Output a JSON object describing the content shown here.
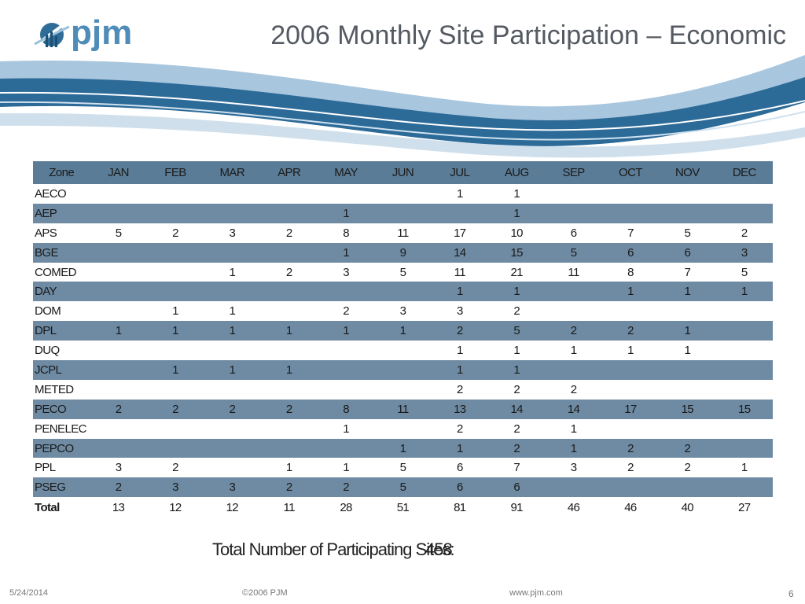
{
  "logo": {
    "text": "pjm"
  },
  "title": "2006 Monthly Site Participation – Economic",
  "table": {
    "headers": [
      "Zone",
      "JAN",
      "FEB",
      "MAR",
      "APR",
      "MAY",
      "JUN",
      "JUL",
      "AUG",
      "SEP",
      "OCT",
      "NOV",
      "DEC"
    ],
    "rows": [
      [
        "AECO",
        "",
        "",
        "",
        "",
        "",
        "",
        "1",
        "1",
        "",
        "",
        "",
        ""
      ],
      [
        "AEP",
        "",
        "",
        "",
        "",
        "1",
        "",
        "",
        "1",
        "",
        "",
        "",
        ""
      ],
      [
        "APS",
        "5",
        "2",
        "3",
        "2",
        "8",
        "11",
        "17",
        "10",
        "6",
        "7",
        "5",
        "2"
      ],
      [
        "BGE",
        "",
        "",
        "",
        "",
        "1",
        "9",
        "14",
        "15",
        "5",
        "6",
        "6",
        "3"
      ],
      [
        "COMED",
        "",
        "",
        "1",
        "2",
        "3",
        "5",
        "11",
        "21",
        "11",
        "8",
        "7",
        "5"
      ],
      [
        "DAY",
        "",
        "",
        "",
        "",
        "",
        "",
        "1",
        "1",
        "",
        "1",
        "1",
        "1"
      ],
      [
        "DOM",
        "",
        "1",
        "1",
        "",
        "2",
        "3",
        "3",
        "2",
        "",
        "",
        "",
        ""
      ],
      [
        "DPL",
        "1",
        "1",
        "1",
        "1",
        "1",
        "1",
        "2",
        "5",
        "2",
        "2",
        "1",
        ""
      ],
      [
        "DUQ",
        "",
        "",
        "",
        "",
        "",
        "",
        "1",
        "1",
        "1",
        "1",
        "1",
        ""
      ],
      [
        "JCPL",
        "",
        "1",
        "1",
        "1",
        "",
        "",
        "1",
        "1",
        "",
        "",
        "",
        ""
      ],
      [
        "METED",
        "",
        "",
        "",
        "",
        "",
        "",
        "2",
        "2",
        "2",
        "",
        "",
        ""
      ],
      [
        "PECO",
        "2",
        "2",
        "2",
        "2",
        "8",
        "11",
        "13",
        "14",
        "14",
        "17",
        "15",
        "15"
      ],
      [
        "PENELEC",
        "",
        "",
        "",
        "",
        "1",
        "",
        "2",
        "2",
        "1",
        "",
        "",
        ""
      ],
      [
        "PEPCO",
        "",
        "",
        "",
        "",
        "",
        "1",
        "1",
        "2",
        "1",
        "2",
        "2",
        ""
      ],
      [
        "PPL",
        "3",
        "2",
        "",
        "1",
        "1",
        "5",
        "6",
        "7",
        "3",
        "2",
        "2",
        "1"
      ],
      [
        "PSEG",
        "2",
        "3",
        "3",
        "2",
        "2",
        "5",
        "6",
        "6",
        "",
        "",
        "",
        ""
      ]
    ],
    "total": [
      "Total",
      "13",
      "12",
      "12",
      "11",
      "28",
      "51",
      "81",
      "91",
      "46",
      "46",
      "40",
      "27"
    ]
  },
  "summary": {
    "label": "Total Number of Participating Sites:",
    "value": "458"
  },
  "footer": {
    "date": "5/24/2014",
    "copyright": "©2006 PJM",
    "url": "www.pjm.com",
    "page": "6"
  },
  "colors": {
    "header_band": "#5b7c96",
    "shaded_row": "#6e8ba3",
    "logo_blue": "#1f5f8c",
    "title_gray": "#555a62"
  },
  "icons": {
    "logo_mark": "pjm-logo-icon"
  }
}
